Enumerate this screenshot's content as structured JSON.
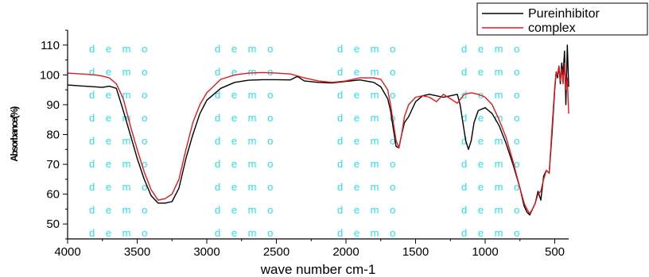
{
  "chart_data": {
    "type": "line",
    "title": "",
    "xlabel": "wave number cm-1",
    "ylabel": "Absorbance(%)",
    "xlim": [
      4000,
      400
    ],
    "ylim": [
      45,
      115
    ],
    "x_reversed": true,
    "grid": false,
    "legend_position": "top-right",
    "x_ticks": [
      4000,
      3500,
      3000,
      2500,
      2000,
      1500,
      1000,
      500
    ],
    "y_ticks": [
      50,
      60,
      70,
      80,
      90,
      100,
      110
    ],
    "watermark_text": "d e m o",
    "series": [
      {
        "name": "Pureinhibitor",
        "color": "#000000",
        "points": [
          [
            4000,
            96.6
          ],
          [
            3900,
            96.3
          ],
          [
            3800,
            96.0
          ],
          [
            3750,
            95.8
          ],
          [
            3700,
            96.2
          ],
          [
            3650,
            95.5
          ],
          [
            3600,
            88.0
          ],
          [
            3550,
            80.0
          ],
          [
            3500,
            72.0
          ],
          [
            3450,
            65.0
          ],
          [
            3400,
            59.5
          ],
          [
            3350,
            57.0
          ],
          [
            3300,
            57.0
          ],
          [
            3250,
            57.5
          ],
          [
            3200,
            62.0
          ],
          [
            3150,
            72.0
          ],
          [
            3100,
            80.0
          ],
          [
            3050,
            87.0
          ],
          [
            3000,
            91.5
          ],
          [
            2900,
            95.5
          ],
          [
            2800,
            97.5
          ],
          [
            2700,
            98.2
          ],
          [
            2600,
            98.4
          ],
          [
            2500,
            98.4
          ],
          [
            2400,
            98.3
          ],
          [
            2350,
            99.5
          ],
          [
            2300,
            98.0
          ],
          [
            2200,
            97.5
          ],
          [
            2100,
            97.3
          ],
          [
            2000,
            97.8
          ],
          [
            1900,
            98.3
          ],
          [
            1800,
            97.5
          ],
          [
            1750,
            96.0
          ],
          [
            1700,
            92.0
          ],
          [
            1680,
            88.0
          ],
          [
            1660,
            82.0
          ],
          [
            1640,
            76.0
          ],
          [
            1620,
            75.5
          ],
          [
            1600,
            80.0
          ],
          [
            1580,
            84.0
          ],
          [
            1550,
            86.0
          ],
          [
            1500,
            91.0
          ],
          [
            1450,
            93.0
          ],
          [
            1400,
            93.5
          ],
          [
            1350,
            93.0
          ],
          [
            1300,
            92.5
          ],
          [
            1250,
            93.0
          ],
          [
            1200,
            93.5
          ],
          [
            1180,
            90.0
          ],
          [
            1160,
            84.0
          ],
          [
            1140,
            78.0
          ],
          [
            1120,
            75.0
          ],
          [
            1100,
            78.0
          ],
          [
            1080,
            84.0
          ],
          [
            1050,
            88.0
          ],
          [
            1000,
            89.0
          ],
          [
            950,
            87.0
          ],
          [
            900,
            83.0
          ],
          [
            850,
            77.0
          ],
          [
            800,
            70.0
          ],
          [
            750,
            62.0
          ],
          [
            720,
            56.0
          ],
          [
            700,
            54.0
          ],
          [
            680,
            53.0
          ],
          [
            660,
            55.0
          ],
          [
            640,
            57.0
          ],
          [
            620,
            61.0
          ],
          [
            600,
            58.0
          ],
          [
            580,
            66.0
          ],
          [
            560,
            68.0
          ],
          [
            540,
            67.0
          ],
          [
            520,
            80.0
          ],
          [
            500,
            95.0
          ],
          [
            490,
            101.0
          ],
          [
            480,
            99.0
          ],
          [
            470,
            103.0
          ],
          [
            460,
            97.0
          ],
          [
            450,
            104.0
          ],
          [
            440,
            100.0
          ],
          [
            430,
            108.0
          ],
          [
            420,
            90.0
          ],
          [
            410,
            110.0
          ],
          [
            400,
            96.0
          ]
        ]
      },
      {
        "name": "complex",
        "color": "#e4181c",
        "points": [
          [
            4000,
            100.6
          ],
          [
            3900,
            100.3
          ],
          [
            3800,
            100.0
          ],
          [
            3750,
            99.6
          ],
          [
            3700,
            99.0
          ],
          [
            3650,
            97.0
          ],
          [
            3600,
            92.0
          ],
          [
            3550,
            83.0
          ],
          [
            3500,
            75.0
          ],
          [
            3450,
            67.5
          ],
          [
            3400,
            61.5
          ],
          [
            3350,
            58.0
          ],
          [
            3300,
            58.5
          ],
          [
            3250,
            60.0
          ],
          [
            3200,
            65.0
          ],
          [
            3150,
            75.0
          ],
          [
            3100,
            84.0
          ],
          [
            3050,
            90.0
          ],
          [
            3000,
            94.0
          ],
          [
            2900,
            98.5
          ],
          [
            2800,
            100.0
          ],
          [
            2700,
            100.6
          ],
          [
            2600,
            100.8
          ],
          [
            2500,
            100.6
          ],
          [
            2400,
            100.3
          ],
          [
            2300,
            99.0
          ],
          [
            2200,
            98.0
          ],
          [
            2100,
            97.5
          ],
          [
            2000,
            98.0
          ],
          [
            1900,
            99.0
          ],
          [
            1800,
            99.0
          ],
          [
            1750,
            98.5
          ],
          [
            1700,
            95.0
          ],
          [
            1680,
            90.0
          ],
          [
            1660,
            84.0
          ],
          [
            1640,
            78.0
          ],
          [
            1620,
            75.5
          ],
          [
            1600,
            80.0
          ],
          [
            1580,
            86.0
          ],
          [
            1550,
            90.0
          ],
          [
            1500,
            92.5
          ],
          [
            1450,
            93.0
          ],
          [
            1400,
            92.5
          ],
          [
            1350,
            91.0
          ],
          [
            1300,
            93.5
          ],
          [
            1250,
            92.0
          ],
          [
            1200,
            90.5
          ],
          [
            1150,
            93.5
          ],
          [
            1100,
            94.0
          ],
          [
            1050,
            93.5
          ],
          [
            1000,
            92.5
          ],
          [
            950,
            90.0
          ],
          [
            900,
            85.0
          ],
          [
            850,
            79.0
          ],
          [
            800,
            71.0
          ],
          [
            750,
            62.0
          ],
          [
            720,
            57.0
          ],
          [
            700,
            55.0
          ],
          [
            680,
            53.5
          ],
          [
            660,
            55.0
          ],
          [
            640,
            57.0
          ],
          [
            620,
            60.0
          ],
          [
            600,
            61.0
          ],
          [
            580,
            65.0
          ],
          [
            560,
            68.0
          ],
          [
            540,
            67.0
          ],
          [
            520,
            82.0
          ],
          [
            500,
            96.0
          ],
          [
            490,
            101.0
          ],
          [
            480,
            100.0
          ],
          [
            470,
            103.0
          ],
          [
            460,
            98.0
          ],
          [
            450,
            102.0
          ],
          [
            440,
            97.0
          ],
          [
            430,
            104.0
          ],
          [
            420,
            95.0
          ],
          [
            410,
            99.0
          ],
          [
            400,
            87.0
          ]
        ]
      }
    ]
  }
}
